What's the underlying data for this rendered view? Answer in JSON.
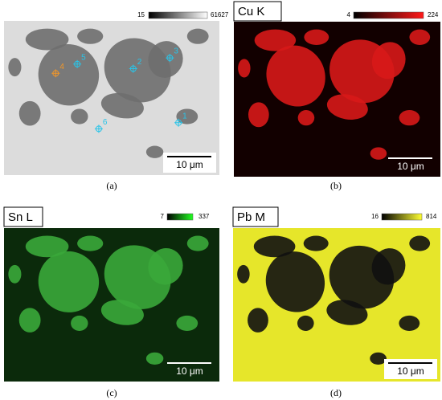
{
  "panels": [
    {
      "caption": "(a)",
      "colorbar": {
        "min": 15,
        "max": 61627
      },
      "scale_bar": "10 μm",
      "markers": [
        {
          "label": "1"
        },
        {
          "label": "2"
        },
        {
          "label": "3"
        },
        {
          "label": "4"
        },
        {
          "label": "5"
        },
        {
          "label": "6"
        }
      ]
    },
    {
      "caption": "(b)",
      "element": "Cu K",
      "colorbar": {
        "min": 4,
        "max": 224
      },
      "scale_bar": "10 μm"
    },
    {
      "caption": "(c)",
      "element": "Sn L",
      "colorbar": {
        "min": 7,
        "max": 337
      },
      "scale_bar": "10 μm"
    },
    {
      "caption": "(d)",
      "element": "Pb M",
      "colorbar": {
        "min": 16,
        "max": 814
      },
      "scale_bar": "10 μm"
    }
  ]
}
